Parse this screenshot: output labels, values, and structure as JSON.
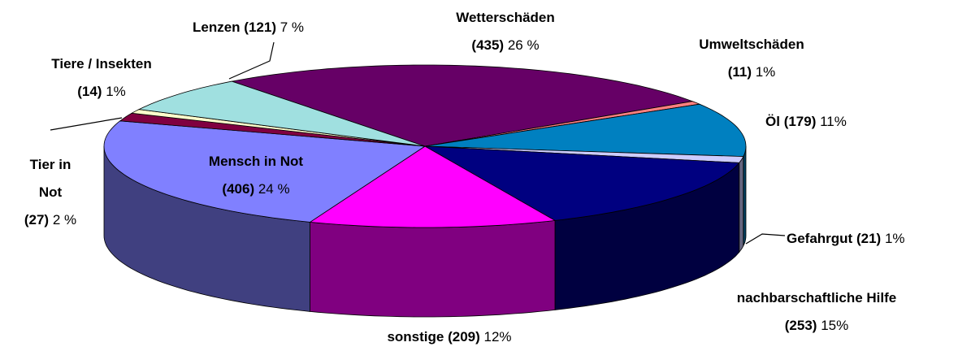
{
  "chart_data": {
    "type": "pie3d",
    "categories": [
      "Wetterschäden",
      "Umweltschäden",
      "Öl",
      "Gefahrgut",
      "nachbarschaftliche Hilfe",
      "sonstige",
      "Mensch in Not",
      "Tier in Not",
      "Tiere / Insekten",
      "Lenzen"
    ],
    "values": [
      435,
      11,
      179,
      21,
      253,
      209,
      406,
      27,
      14,
      121
    ],
    "value_labels": [
      "(435)",
      "(11)",
      "(179)",
      "(21)",
      "(253)",
      "(209)",
      "(406)",
      "(27)",
      "(14)",
      "(121)"
    ],
    "percents": [
      26,
      1,
      11,
      1,
      15,
      12,
      24,
      2,
      1,
      7
    ],
    "percent_labels": [
      "26 %",
      "1%",
      "11%",
      "1%",
      "15%",
      "12%",
      "24 %",
      "2 %",
      "1%",
      "7 %"
    ],
    "colors": [
      "#660066",
      "#ff8080",
      "#0080c0",
      "#ccccff",
      "#000080",
      "#ff00ff",
      "#8080ff",
      "#800040",
      "#ffffcc",
      "#a0e0e0"
    ]
  }
}
